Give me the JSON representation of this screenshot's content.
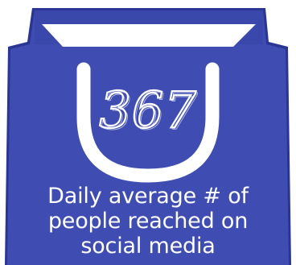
{
  "badge": {
    "number": "367",
    "caption_lines": [
      "Daily average # of",
      "people reached on",
      "social media"
    ],
    "colors": {
      "bag_fill": "#3f4db3",
      "bag_outline": "#2b3593",
      "text": "#ffffff"
    }
  }
}
